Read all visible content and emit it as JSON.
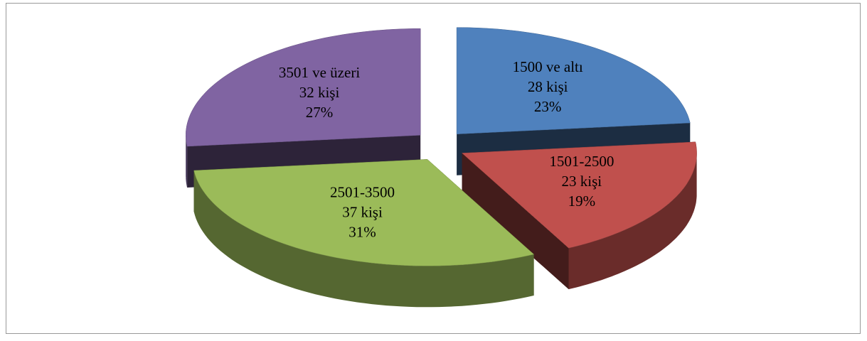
{
  "chart_data": {
    "type": "pie",
    "categories": [
      "1500 ve altı",
      "1501-2500",
      "2501-3500",
      "3501 ve üzeri"
    ],
    "values": [
      28,
      23,
      37,
      32
    ],
    "value_labels": [
      "28 kişi",
      "23 kişi",
      "37 kişi",
      "32 kişi"
    ],
    "percents": [
      23,
      19,
      31,
      27
    ],
    "percent_labels": [
      "23%",
      "19%",
      "31%",
      "27%"
    ],
    "colors": [
      "#4f81bd",
      "#c0504d",
      "#9bbb59",
      "#8064a2"
    ],
    "exploded": true
  }
}
